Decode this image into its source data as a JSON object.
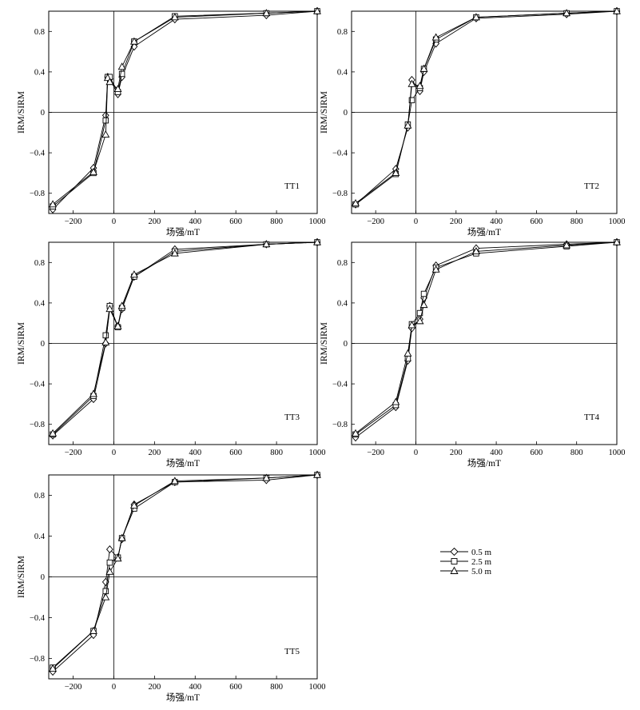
{
  "legend": {
    "entries": [
      {
        "label": "0.5 m",
        "marker": "diamond"
      },
      {
        "label": "2.5 m",
        "marker": "square"
      },
      {
        "label": "5.0 m",
        "marker": "triangle"
      }
    ]
  },
  "chart_data": [
    {
      "type": "line",
      "panel": "TT1",
      "xlabel": "场强/mT",
      "ylabel": "IRM/SIRM",
      "xlim": [
        -320,
        1000
      ],
      "ylim": [
        -1.0,
        1.0
      ],
      "xticks": [
        -200,
        0,
        200,
        400,
        600,
        800,
        1000
      ],
      "yticks": [
        -0.8,
        -0.4,
        0,
        0.4,
        0.8
      ],
      "x": [
        -300,
        -100,
        -40,
        -30,
        -20,
        20,
        40,
        100,
        300,
        750,
        1000
      ],
      "series": [
        {
          "name": "0.5 m",
          "values": [
            -0.96,
            -0.55,
            -0.03,
            0.35,
            0.33,
            0.18,
            0.35,
            0.65,
            0.92,
            0.96,
            1.0
          ]
        },
        {
          "name": "2.5 m",
          "values": [
            -0.93,
            -0.6,
            -0.08,
            0.35,
            0.35,
            0.2,
            0.38,
            0.7,
            0.95,
            0.98,
            1.0
          ]
        },
        {
          "name": "5.0 m",
          "values": [
            -0.91,
            -0.59,
            -0.22,
            0.34,
            0.3,
            0.23,
            0.45,
            0.7,
            0.94,
            0.98,
            1.0
          ]
        }
      ]
    },
    {
      "type": "line",
      "panel": "TT2",
      "xlabel": "场强/mT",
      "ylabel": "IRM/SIRM",
      "xlim": [
        -320,
        1000
      ],
      "ylim": [
        -1.0,
        1.0
      ],
      "xticks": [
        -200,
        0,
        200,
        400,
        600,
        800,
        1000
      ],
      "yticks": [
        -0.8,
        -0.4,
        0,
        0.4,
        0.8
      ],
      "x": [
        -300,
        -100,
        -40,
        -20,
        20,
        40,
        100,
        300,
        750,
        1000
      ],
      "series": [
        {
          "name": "0.5 m",
          "values": [
            -0.91,
            -0.56,
            -0.15,
            0.32,
            0.21,
            0.4,
            0.68,
            0.93,
            0.97,
            1.0
          ]
        },
        {
          "name": "2.5 m",
          "values": [
            -0.91,
            -0.61,
            -0.12,
            0.12,
            0.24,
            0.43,
            0.72,
            0.94,
            0.98,
            1.0
          ]
        },
        {
          "name": "5.0 m",
          "values": [
            -0.9,
            -0.6,
            -0.13,
            0.28,
            0.26,
            0.43,
            0.74,
            0.94,
            0.98,
            1.0
          ]
        }
      ]
    },
    {
      "type": "line",
      "panel": "TT3",
      "xlabel": "场强/mT",
      "ylabel": "IRM/SIRM",
      "xlim": [
        -320,
        1000
      ],
      "ylim": [
        -1.0,
        1.0
      ],
      "xticks": [
        -200,
        0,
        200,
        400,
        600,
        800,
        1000
      ],
      "yticks": [
        -0.8,
        -0.4,
        0,
        0.4,
        0.8
      ],
      "x": [
        -300,
        -100,
        -40,
        -20,
        20,
        40,
        100,
        300,
        750,
        1000
      ],
      "series": [
        {
          "name": "0.5 m",
          "values": [
            -0.91,
            -0.55,
            0.0,
            0.37,
            0.17,
            0.34,
            0.66,
            0.93,
            0.98,
            1.0
          ]
        },
        {
          "name": "2.5 m",
          "values": [
            -0.9,
            -0.52,
            0.08,
            0.37,
            0.16,
            0.35,
            0.66,
            0.91,
            0.98,
            1.0
          ]
        },
        {
          "name": "5.0 m",
          "values": [
            -0.89,
            -0.5,
            0.01,
            0.34,
            0.17,
            0.37,
            0.68,
            0.89,
            0.98,
            1.0
          ]
        }
      ]
    },
    {
      "type": "line",
      "panel": "TT4",
      "xlabel": "场强/mT",
      "ylabel": "IRM/SIRM",
      "xlim": [
        -320,
        1000
      ],
      "ylim": [
        -1.0,
        1.0
      ],
      "xticks": [
        -200,
        0,
        200,
        400,
        600,
        800,
        1000
      ],
      "yticks": [
        -0.8,
        -0.4,
        0,
        0.4,
        0.8
      ],
      "x": [
        -300,
        -100,
        -40,
        -20,
        20,
        40,
        100,
        300,
        750,
        1000
      ],
      "series": [
        {
          "name": "0.5 m",
          "values": [
            -0.93,
            -0.63,
            -0.17,
            0.15,
            0.24,
            0.45,
            0.77,
            0.94,
            0.98,
            1.0
          ]
        },
        {
          "name": "2.5 m",
          "values": [
            -0.9,
            -0.61,
            -0.15,
            0.19,
            0.3,
            0.49,
            0.75,
            0.89,
            0.96,
            1.0
          ]
        },
        {
          "name": "5.0 m",
          "values": [
            -0.89,
            -0.58,
            -0.1,
            0.18,
            0.22,
            0.38,
            0.73,
            0.91,
            0.97,
            1.0
          ]
        }
      ]
    },
    {
      "type": "line",
      "panel": "TT5",
      "xlabel": "场强/mT",
      "ylabel": "IRM/SIRM",
      "xlim": [
        -320,
        1000
      ],
      "ylim": [
        -1.0,
        1.0
      ],
      "xticks": [
        -200,
        0,
        200,
        400,
        600,
        800,
        1000
      ],
      "yticks": [
        -0.8,
        -0.4,
        0,
        0.4,
        0.8
      ],
      "x": [
        -300,
        -100,
        -40,
        -20,
        20,
        40,
        100,
        300,
        750,
        1000
      ],
      "series": [
        {
          "name": "0.5 m",
          "values": [
            -0.93,
            -0.57,
            -0.05,
            0.27,
            0.19,
            0.37,
            0.71,
            0.93,
            0.95,
            1.0
          ]
        },
        {
          "name": "2.5 m",
          "values": [
            -0.89,
            -0.53,
            -0.14,
            0.14,
            0.19,
            0.38,
            0.67,
            0.93,
            0.97,
            1.0
          ]
        },
        {
          "name": "5.0 m",
          "values": [
            -0.9,
            -0.53,
            -0.2,
            0.05,
            0.18,
            0.38,
            0.7,
            0.94,
            0.97,
            1.0
          ]
        }
      ]
    }
  ]
}
